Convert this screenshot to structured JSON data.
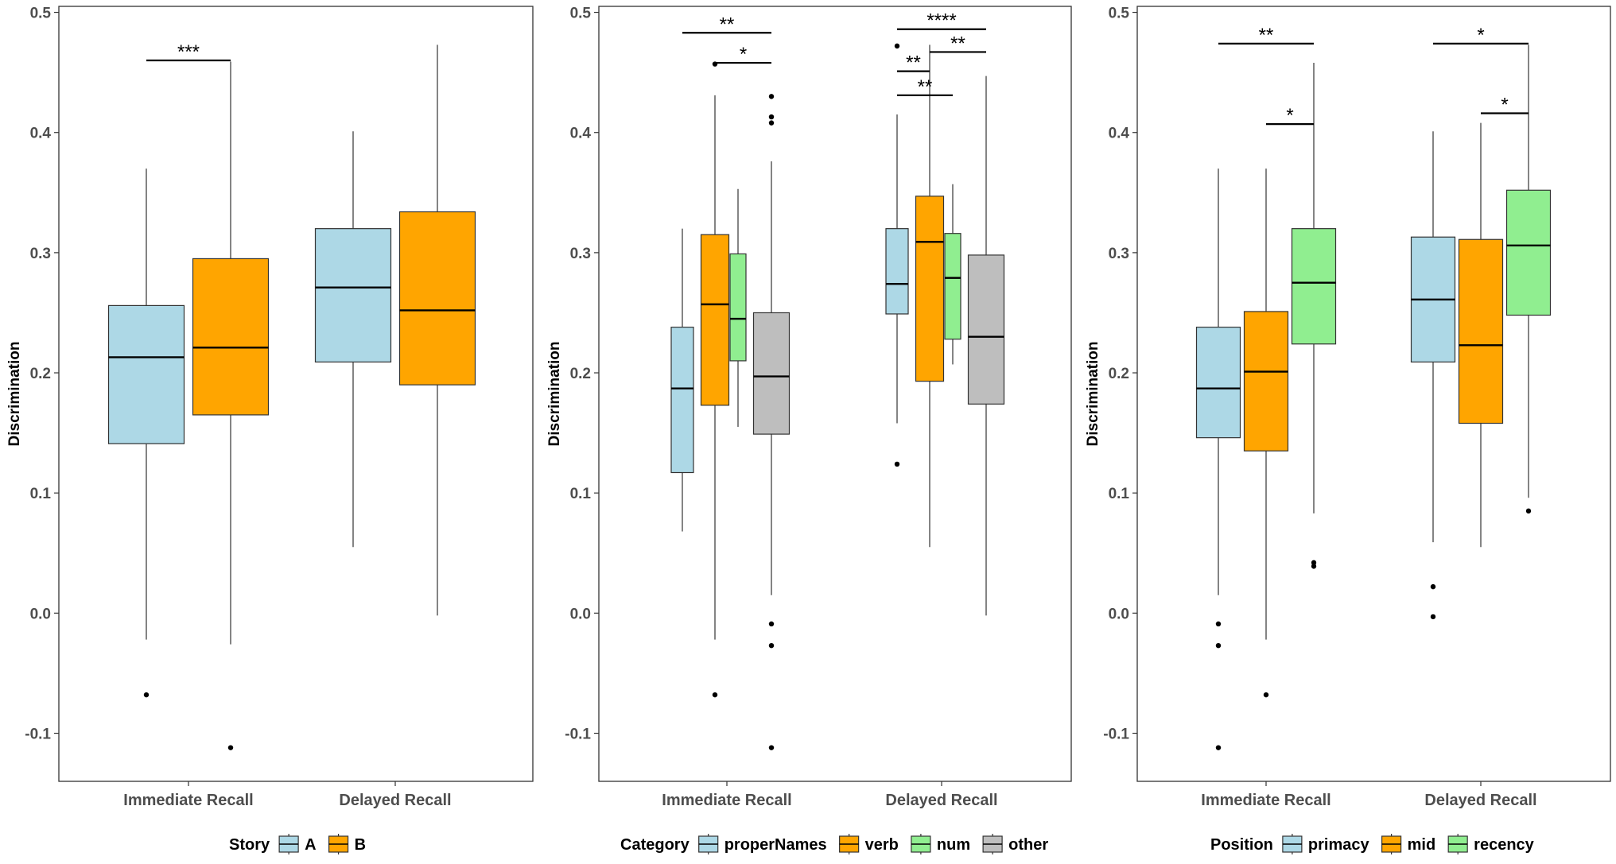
{
  "chart_data": [
    {
      "type": "box",
      "ylabel": "Discrimination",
      "ylim": [
        -0.14,
        0.505
      ],
      "yticks": [
        "-0.1",
        "0.0",
        "0.1",
        "0.2",
        "0.3",
        "0.4",
        "0.5"
      ],
      "categories": [
        "Immediate Recall",
        "Delayed Recall"
      ],
      "legend": {
        "title": "Story",
        "position": "bottom"
      },
      "series": [
        {
          "name": "A",
          "color": "#ADD8E6",
          "boxes": [
            {
              "lower_whisker": -0.022,
              "q1": 0.141,
              "median": 0.213,
              "q3": 0.256,
              "upper_whisker": 0.37,
              "outliers": [
                -0.068
              ]
            },
            {
              "lower_whisker": 0.055,
              "q1": 0.209,
              "median": 0.271,
              "q3": 0.32,
              "upper_whisker": 0.401,
              "outliers": []
            }
          ]
        },
        {
          "name": "B",
          "color": "#FFA500",
          "boxes": [
            {
              "lower_whisker": -0.026,
              "q1": 0.165,
              "median": 0.221,
              "q3": 0.295,
              "upper_whisker": 0.459,
              "outliers": [
                -0.112
              ]
            },
            {
              "lower_whisker": -0.002,
              "q1": 0.19,
              "median": 0.252,
              "q3": 0.334,
              "upper_whisker": 0.473,
              "outliers": []
            }
          ]
        }
      ],
      "significance": [
        {
          "group": 0,
          "from": 0,
          "to": 1,
          "y": 0.46,
          "label": "***"
        }
      ]
    },
    {
      "type": "box",
      "ylabel": "Discrimination",
      "ylim": [
        -0.14,
        0.505
      ],
      "yticks": [
        "-0.1",
        "0.0",
        "0.1",
        "0.2",
        "0.3",
        "0.4",
        "0.5"
      ],
      "categories": [
        "Immediate Recall",
        "Delayed Recall"
      ],
      "legend": {
        "title": "Category",
        "position": "bottom"
      },
      "series": [
        {
          "name": "properNames",
          "color": "#ADD8E6",
          "boxes": [
            {
              "lower_whisker": 0.068,
              "q1": 0.117,
              "median": 0.187,
              "q3": 0.238,
              "upper_whisker": 0.32,
              "outliers": []
            },
            {
              "lower_whisker": 0.158,
              "q1": 0.249,
              "median": 0.274,
              "q3": 0.32,
              "upper_whisker": 0.415,
              "outliers": [
                0.124,
                0.472
              ]
            }
          ]
        },
        {
          "name": "verb",
          "color": "#FFA500",
          "boxes": [
            {
              "lower_whisker": -0.022,
              "q1": 0.173,
              "median": 0.257,
              "q3": 0.315,
              "upper_whisker": 0.431,
              "outliers": [
                -0.068,
                0.457
              ]
            },
            {
              "lower_whisker": 0.055,
              "q1": 0.193,
              "median": 0.309,
              "q3": 0.347,
              "upper_whisker": 0.473,
              "outliers": []
            }
          ]
        },
        {
          "name": "num",
          "color": "#90EE90",
          "boxes": [
            {
              "lower_whisker": 0.155,
              "q1": 0.21,
              "median": 0.245,
              "q3": 0.299,
              "upper_whisker": 0.353,
              "outliers": []
            },
            {
              "lower_whisker": 0.207,
              "q1": 0.228,
              "median": 0.279,
              "q3": 0.316,
              "upper_whisker": 0.357,
              "outliers": []
            }
          ]
        },
        {
          "name": "other",
          "color": "#BEBEBE",
          "boxes": [
            {
              "lower_whisker": 0.015,
              "q1": 0.149,
              "median": 0.197,
              "q3": 0.25,
              "upper_whisker": 0.376,
              "outliers": [
                -0.112,
                -0.027,
                -0.009,
                0.408,
                0.413,
                0.43
              ]
            },
            {
              "lower_whisker": -0.002,
              "q1": 0.174,
              "median": 0.23,
              "q3": 0.298,
              "upper_whisker": 0.447,
              "outliers": []
            }
          ]
        }
      ],
      "significance": [
        {
          "group": 0,
          "from": 0,
          "to": 3,
          "y": 0.483,
          "label": "**"
        },
        {
          "group": 0,
          "from": 1,
          "to": 3,
          "y": 0.458,
          "label": "*"
        },
        {
          "group": 1,
          "from": 0,
          "to": 3,
          "y": 0.486,
          "label": "****"
        },
        {
          "group": 1,
          "from": 1,
          "to": 3,
          "y": 0.467,
          "label": "**"
        },
        {
          "group": 1,
          "from": 0,
          "to": 1,
          "y": 0.451,
          "label": "**"
        },
        {
          "group": 1,
          "from": 0,
          "to": 2,
          "y": 0.431,
          "label": "**"
        }
      ]
    },
    {
      "type": "box",
      "ylabel": "Discrimination",
      "ylim": [
        -0.14,
        0.505
      ],
      "yticks": [
        "-0.1",
        "0.0",
        "0.1",
        "0.2",
        "0.3",
        "0.4",
        "0.5"
      ],
      "categories": [
        "Immediate Recall",
        "Delayed Recall"
      ],
      "legend": {
        "title": "Position",
        "position": "bottom"
      },
      "series": [
        {
          "name": "primacy",
          "color": "#ADD8E6",
          "boxes": [
            {
              "lower_whisker": 0.015,
              "q1": 0.146,
              "median": 0.187,
              "q3": 0.238,
              "upper_whisker": 0.37,
              "outliers": [
                -0.112,
                -0.027,
                -0.009
              ]
            },
            {
              "lower_whisker": 0.059,
              "q1": 0.209,
              "median": 0.261,
              "q3": 0.313,
              "upper_whisker": 0.401,
              "outliers": [
                -0.003,
                0.022
              ]
            }
          ]
        },
        {
          "name": "mid",
          "color": "#FFA500",
          "boxes": [
            {
              "lower_whisker": -0.022,
              "q1": 0.135,
              "median": 0.201,
              "q3": 0.251,
              "upper_whisker": 0.37,
              "outliers": [
                -0.068
              ]
            },
            {
              "lower_whisker": 0.055,
              "q1": 0.158,
              "median": 0.223,
              "q3": 0.311,
              "upper_whisker": 0.408,
              "outliers": []
            }
          ]
        },
        {
          "name": "recency",
          "color": "#90EE90",
          "boxes": [
            {
              "lower_whisker": 0.083,
              "q1": 0.224,
              "median": 0.275,
              "q3": 0.32,
              "upper_whisker": 0.458,
              "outliers": [
                0.039,
                0.042
              ]
            },
            {
              "lower_whisker": 0.096,
              "q1": 0.248,
              "median": 0.306,
              "q3": 0.352,
              "upper_whisker": 0.473,
              "outliers": [
                0.085
              ]
            }
          ]
        }
      ],
      "significance": [
        {
          "group": 0,
          "from": 0,
          "to": 2,
          "y": 0.474,
          "label": "**"
        },
        {
          "group": 0,
          "from": 1,
          "to": 2,
          "y": 0.407,
          "label": "*"
        },
        {
          "group": 1,
          "from": 0,
          "to": 2,
          "y": 0.474,
          "label": "*"
        },
        {
          "group": 1,
          "from": 1,
          "to": 2,
          "y": 0.416,
          "label": "*"
        }
      ]
    }
  ]
}
